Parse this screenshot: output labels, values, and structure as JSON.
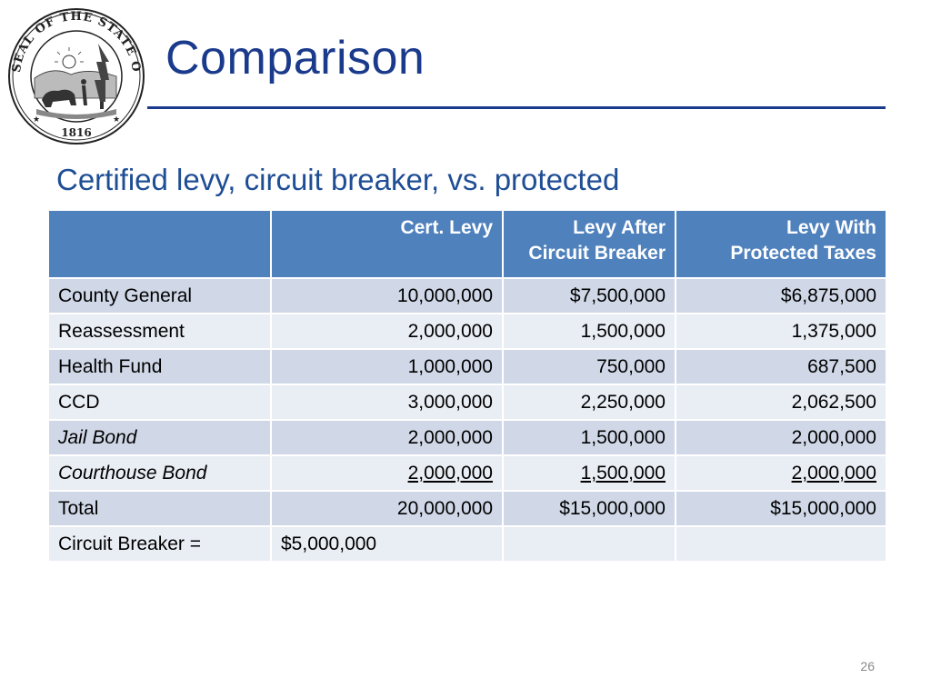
{
  "seal": {
    "ring_text": "SEAL OF THE STATE OF INDIANA",
    "year": "1816"
  },
  "title": "Comparison",
  "subtitle": "Certified levy, circuit breaker, vs. protected",
  "table": {
    "headers": [
      "",
      "Cert. Levy",
      "Levy After Circuit Breaker",
      "Levy With Protected Taxes"
    ],
    "header_lines": [
      [
        ""
      ],
      [
        "Cert. Levy"
      ],
      [
        "Levy After",
        "Circuit Breaker"
      ],
      [
        "Levy With",
        "Protected Taxes"
      ]
    ],
    "rows": [
      {
        "label": "County General",
        "cert": "10,000,000",
        "after_cb": "$7,500,000",
        "protected": "$6,875,000"
      },
      {
        "label": "Reassessment",
        "cert": "2,000,000",
        "after_cb": "1,500,000",
        "protected": "1,375,000"
      },
      {
        "label": "Health Fund",
        "cert": "1,000,000",
        "after_cb": "750,000",
        "protected": "687,500"
      },
      {
        "label": "CCD",
        "cert": "3,000,000",
        "after_cb": "2,250,000",
        "protected": "2,062,500"
      },
      {
        "label": "Jail Bond",
        "cert": "2,000,000",
        "after_cb": "1,500,000",
        "protected": "2,000,000"
      },
      {
        "label": "Courthouse Bond",
        "cert": "2,000,000",
        "after_cb": "1,500,000",
        "protected": "2,000,000"
      },
      {
        "label": "Total",
        "cert": "20,000,000",
        "after_cb": "$15,000,000",
        "protected": "$15,000,000"
      },
      {
        "label": "Circuit Breaker =",
        "cert": "$5,000,000",
        "after_cb": "",
        "protected": ""
      }
    ]
  },
  "page_number": "26",
  "colors": {
    "title": "#1a3a8c",
    "subtitle": "#1f4e95",
    "header_bg": "#4f81bd",
    "row_dark": "#d0d8e8",
    "row_light": "#e9edf4"
  }
}
